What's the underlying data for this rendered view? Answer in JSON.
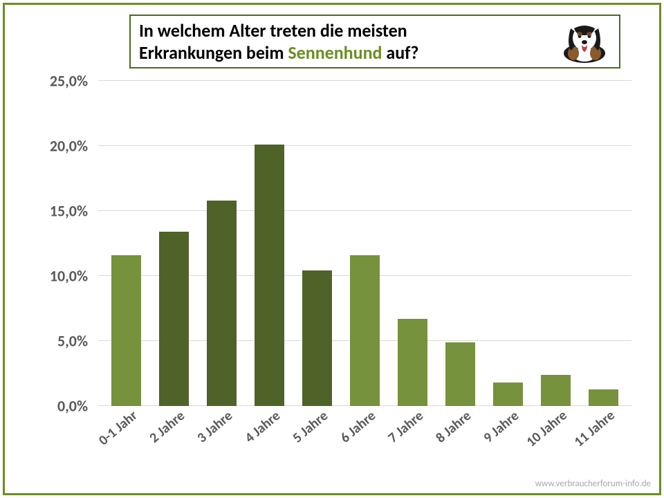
{
  "title": {
    "line1": "In welchem Alter treten die meisten",
    "line2_pre": "Erkrankungen beim ",
    "line2_hl": "Sennenhund",
    "line2_post": " auf?",
    "text_color": "#000000",
    "highlight_color": "#6b8e23",
    "border_color": "#4a6b18",
    "fontsize": 26
  },
  "chart": {
    "type": "bar",
    "categories": [
      "0-1 Jahr",
      "2 Jahre",
      "3 Jahre",
      "4 Jahre",
      "5 Jahre",
      "6 Jahre",
      "7 Jahre",
      "8 Jahre",
      "9 Jahre",
      "10 Jahre",
      "11 Jahre"
    ],
    "values": [
      11.6,
      13.4,
      15.8,
      20.1,
      10.4,
      11.6,
      6.7,
      4.9,
      1.8,
      2.4,
      1.3
    ],
    "bar_colors": [
      "#76923c",
      "#4f6228",
      "#4f6228",
      "#4f6228",
      "#4f6228",
      "#76923c",
      "#76923c",
      "#76923c",
      "#76923c",
      "#76923c",
      "#76923c"
    ],
    "ymin": 0,
    "ymax": 25,
    "ytick_step": 5,
    "ytick_labels": [
      "0,0%",
      "5,0%",
      "10,0%",
      "15,0%",
      "20,0%",
      "25,0%"
    ],
    "grid_color": "#d9d9d9",
    "axis_label_color": "#595959",
    "axis_label_fontsize": 22,
    "xlabel_fontsize": 20,
    "xlabel_rotation_deg": -40,
    "bar_width_ratio": 0.62,
    "background_color": "#ffffff"
  },
  "frame_border_color": "#6b8e23",
  "source_text": "www.verbraucherforum-info.de",
  "source_color": "#a6a6a6"
}
